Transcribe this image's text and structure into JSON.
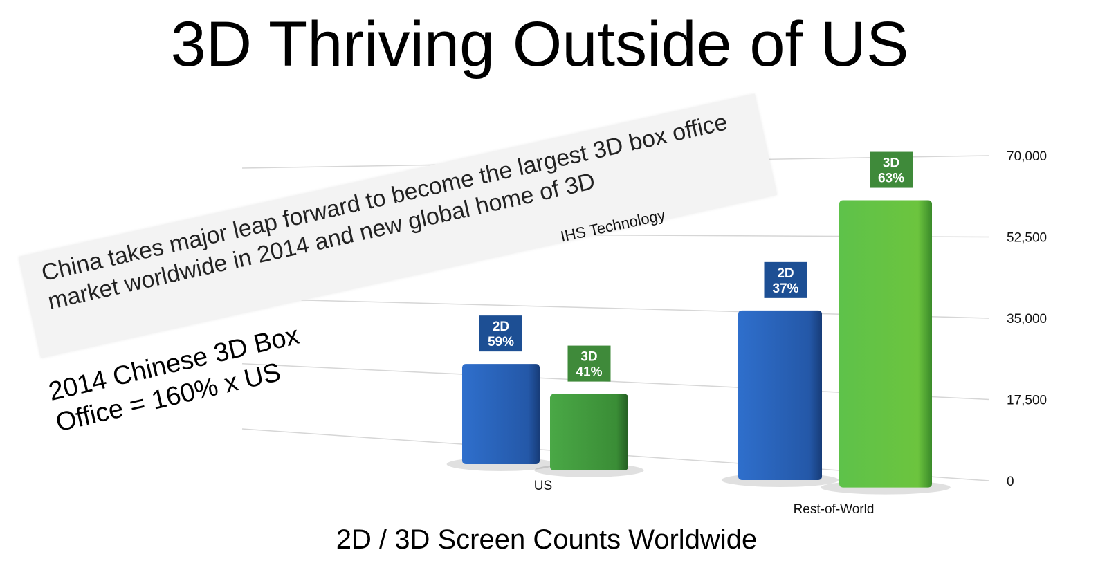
{
  "title": "3D Thriving Outside of US",
  "banner": {
    "headline": "China takes major leap forward to become the largest 3D box office market worldwide in 2014 and new global home of 3D",
    "source": "IHS Technology"
  },
  "annotation": "2014 Chinese 3D Box Office = 160% x US",
  "chart_data": {
    "type": "bar",
    "title": "2D / 3D Screen Counts Worldwide",
    "xlabel": "2D / 3D Screen Counts Worldwide",
    "ylabel": "",
    "categories": [
      "US",
      "Rest-of-World"
    ],
    "series": [
      {
        "name": "2D",
        "color": "#2a62b8",
        "values": [
          20500,
          35500
        ],
        "labels": [
          "59%",
          "37%"
        ]
      },
      {
        "name": "3D",
        "color": "#3d9a3a",
        "values": [
          14200,
          60500
        ],
        "labels": [
          "41%",
          "63%"
        ]
      }
    ],
    "ylim": [
      0,
      70000
    ],
    "yticks": [
      0,
      17500,
      35000,
      52500,
      70000
    ],
    "ytick_labels": [
      "0",
      "17,500",
      "35,000",
      "52,500",
      "70,000"
    ],
    "label_colors": {
      "2D": "#1d4f94",
      "3D": "#3f8a3a"
    },
    "grid": true,
    "axis_position": "right"
  }
}
